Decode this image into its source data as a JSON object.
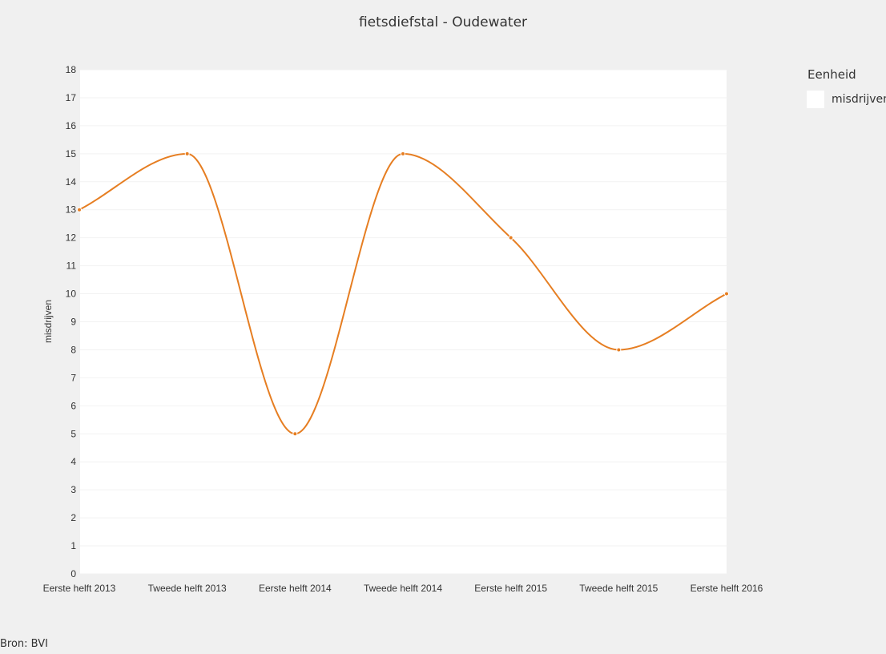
{
  "source_note": "Bron: BVI",
  "chart_data": {
    "type": "line",
    "title": "fietsdiefstal - Oudewater",
    "xlabel": "",
    "ylabel": "misdrijven",
    "ylim": [
      0,
      18
    ],
    "y_ticks": [
      0,
      1,
      2,
      3,
      4,
      5,
      6,
      7,
      8,
      9,
      10,
      11,
      12,
      13,
      14,
      15,
      16,
      17,
      18
    ],
    "grid": true,
    "legend": {
      "title": "Eenheid",
      "placement": "right"
    },
    "categories": [
      "Eerste helft 2013",
      "Tweede helft 2013",
      "Eerste helft 2014",
      "Tweede helft 2014",
      "Eerste helft 2015",
      "Tweede helft 2015",
      "Eerste helft 2016"
    ],
    "series": [
      {
        "name": "misdrijven",
        "color": "#e67e22",
        "values": [
          13,
          15,
          5,
          15,
          12,
          8,
          10
        ]
      }
    ]
  }
}
